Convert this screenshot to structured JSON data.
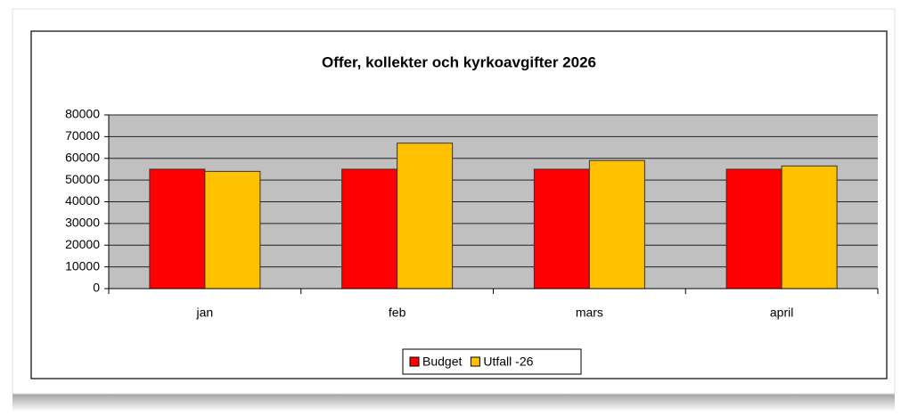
{
  "chart_data": {
    "type": "bar",
    "title": "Offer, kollekter och kyrkoavgifter 2026",
    "categories": [
      "jan",
      "feb",
      "mars",
      "april"
    ],
    "series": [
      {
        "name": "Budget",
        "color": "#ff0000",
        "values": [
          55000,
          55000,
          55000,
          55000
        ]
      },
      {
        "name": "Utfall -26",
        "color": "#ffc000",
        "values": [
          54000,
          67000,
          59000,
          56500
        ]
      }
    ],
    "ylim": [
      0,
      80000
    ],
    "yticks": [
      0,
      10000,
      20000,
      30000,
      40000,
      50000,
      60000,
      70000,
      80000
    ],
    "grid": true,
    "legend": "bottom"
  }
}
